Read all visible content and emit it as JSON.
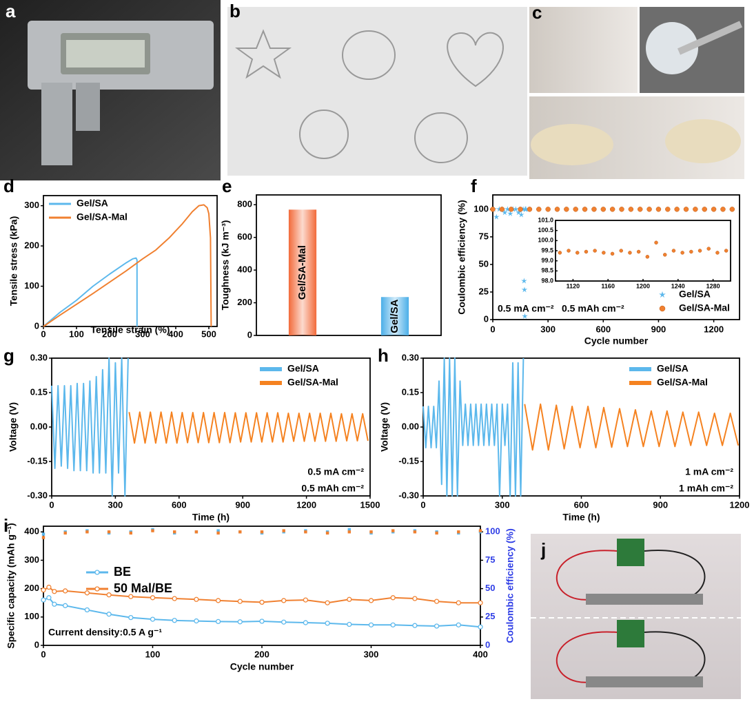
{
  "panel_labels": [
    "a",
    "b",
    "c",
    "d",
    "e",
    "f",
    "g",
    "h",
    "i",
    "j"
  ],
  "chart_data": [
    {
      "type": "line",
      "xlabel": "Tensile strain (%)",
      "ylabel": "Tensile stress (kPa)",
      "xlim": [
        0,
        525
      ],
      "ylim": [
        0,
        325
      ],
      "xticks": [
        0,
        100,
        200,
        300,
        400,
        500
      ],
      "yticks": [
        0,
        100,
        200,
        300
      ],
      "legend": "upper left",
      "series": [
        {
          "name": "Gel/SA",
          "color": "#5cb8ec",
          "x": [
            0,
            50,
            100,
            150,
            200,
            250,
            270,
            280,
            283,
            283
          ],
          "values": [
            0,
            35,
            65,
            100,
            130,
            158,
            168,
            170,
            165,
            0
          ]
        },
        {
          "name": "Gel/SA-Mal",
          "color": "#f08030",
          "x": [
            0,
            50,
            100,
            150,
            200,
            250,
            300,
            340,
            380,
            420,
            450,
            470,
            485,
            495,
            500,
            505,
            507
          ],
          "values": [
            0,
            28,
            55,
            82,
            110,
            138,
            168,
            190,
            220,
            255,
            285,
            300,
            302,
            295,
            280,
            220,
            0
          ]
        }
      ]
    },
    {
      "type": "bar",
      "ylabel": "Toughness (kJ m⁻³)",
      "categories": [
        "Gel/SA-Mal",
        "Gel/SA"
      ],
      "values": [
        770,
        235
      ],
      "colors": [
        "#f26a3a",
        "#4aaee8"
      ],
      "ylim": [
        0,
        860
      ],
      "yticks": [
        0,
        200,
        400,
        600,
        800
      ]
    },
    {
      "type": "scatter",
      "xlabel": "Cycle number",
      "ylabel": "Coulombic efficiency (%)",
      "xlim": [
        0,
        1340
      ],
      "ylim": [
        0,
        113
      ],
      "xticks": [
        0,
        300,
        600,
        900,
        1200
      ],
      "yticks": [
        0,
        25,
        50,
        75,
        100
      ],
      "legend": "lower right",
      "annotations": [
        "0.5 mA cm⁻²",
        "0.5 mAh cm⁻²"
      ],
      "series": [
        {
          "name": "Gel/SA",
          "color": "#5cb8ec",
          "marker": "star",
          "x": [
            5,
            20,
            35,
            50,
            65,
            80,
            95,
            110,
            125,
            140,
            155,
            165,
            170,
            172,
            174,
            176,
            178,
            180
          ],
          "values": [
            100,
            93,
            100,
            100,
            97,
            100,
            96,
            100,
            100,
            97,
            95,
            100,
            35,
            27,
            3,
            100,
            100,
            100
          ]
        },
        {
          "name": "Gel/SA-Mal",
          "color": "#f08030",
          "marker": "circle",
          "x": [
            0,
            50,
            100,
            150,
            200,
            250,
            300,
            350,
            400,
            450,
            500,
            550,
            600,
            650,
            700,
            750,
            800,
            850,
            900,
            950,
            1000,
            1050,
            1100,
            1150,
            1200,
            1250,
            1300
          ],
          "values": [
            100,
            100,
            100,
            100,
            100,
            100,
            100,
            100,
            100,
            100,
            100,
            100,
            100,
            100,
            100,
            100,
            100,
            100,
            100,
            100,
            100,
            100,
            100,
            100,
            100,
            100,
            100
          ]
        }
      ],
      "inset": {
        "type": "scatter",
        "xlim": [
          1100,
          1300
        ],
        "ylim": [
          98,
          101
        ],
        "xticks": [
          1120,
          1160,
          1200,
          1240,
          1280
        ],
        "yticks": [
          {
            "value": 98,
            "label": "98.0"
          },
          {
            "value": 98.5,
            "label": "98.5"
          },
          {
            "value": 99,
            "label": "99.0"
          },
          {
            "value": 99.5,
            "label": "99.5"
          },
          {
            "value": 100,
            "label": "100.0"
          },
          {
            "value": 100.5,
            "label": "100.5"
          },
          {
            "value": 101,
            "label": "101.0"
          }
        ],
        "series": [
          {
            "color": "#f08030",
            "marker": "circle",
            "x": [
              1105,
              1115,
              1125,
              1135,
              1145,
              1155,
              1165,
              1175,
              1185,
              1195,
              1205,
              1215,
              1225,
              1235,
              1245,
              1255,
              1265,
              1275,
              1285,
              1295
            ],
            "values": [
              99.4,
              99.5,
              99.4,
              99.45,
              99.5,
              99.4,
              99.35,
              99.5,
              99.4,
              99.45,
              99.2,
              99.9,
              99.3,
              99.5,
              99.4,
              99.45,
              99.5,
              99.6,
              99.4,
              99.5
            ]
          }
        ]
      }
    },
    {
      "type": "line",
      "xlabel": "Time (h)",
      "ylabel": "Voltage (V)",
      "xlim": [
        0,
        1500
      ],
      "ylim": [
        -0.3,
        0.3
      ],
      "xticks": [
        0,
        300,
        600,
        900,
        1200,
        1500
      ],
      "yticks": [
        {
          "value": -0.3,
          "label": "-0.30"
        },
        {
          "value": -0.15,
          "label": "-0.15"
        },
        {
          "value": 0,
          "label": "0.00"
        },
        {
          "value": 0.15,
          "label": "0.15"
        },
        {
          "value": 0.3,
          "label": "0.30"
        }
      ],
      "legend": "upper right",
      "annotations": [
        "0.5 mA cm⁻²",
        "0.5 mAh cm⁻²"
      ],
      "series": [
        {
          "name": "Gel/SA",
          "color": "#5cb8ec",
          "x": [
            0,
            15,
            30,
            45,
            60,
            75,
            90,
            105,
            120,
            135,
            150,
            165,
            180,
            195,
            210,
            225,
            240,
            255,
            270,
            285,
            300,
            315,
            330,
            345,
            360
          ],
          "values": [
            0.18,
            -0.18,
            0.18,
            -0.17,
            0.18,
            -0.18,
            0.18,
            -0.19,
            0.19,
            -0.19,
            0.19,
            -0.19,
            0.2,
            -0.2,
            0.22,
            -0.2,
            0.25,
            -0.2,
            0.3,
            -0.3,
            0.28,
            -0.2,
            0.3,
            -0.3,
            0.3
          ]
        },
        {
          "name": "Gel/SA-Mal",
          "color": "#f58220",
          "x": [
            365,
            390,
            415,
            440,
            465,
            490,
            515,
            540,
            565,
            590,
            615,
            640,
            665,
            690,
            715,
            740,
            765,
            790,
            815,
            840,
            865,
            890,
            915,
            940,
            965,
            990,
            1015,
            1040,
            1065,
            1090,
            1115,
            1140,
            1165,
            1190,
            1215,
            1240,
            1265,
            1290,
            1315,
            1340,
            1365,
            1390,
            1415,
            1440,
            1465,
            1490
          ],
          "values": [
            0.065,
            -0.07,
            0.065,
            -0.07,
            0.065,
            -0.07,
            0.065,
            -0.07,
            0.065,
            -0.07,
            0.063,
            -0.068,
            0.063,
            -0.068,
            0.063,
            -0.068,
            0.063,
            -0.068,
            0.063,
            -0.068,
            0.062,
            -0.065,
            0.062,
            -0.065,
            0.062,
            -0.065,
            0.062,
            -0.065,
            0.062,
            -0.065,
            0.06,
            -0.062,
            0.06,
            -0.062,
            0.06,
            -0.062,
            0.06,
            -0.062,
            0.06,
            -0.062,
            0.058,
            -0.06,
            0.058,
            -0.06,
            0.058,
            -0.06
          ]
        }
      ]
    },
    {
      "type": "line",
      "xlabel": "Time (h)",
      "ylabel": "Voltage (V)",
      "xlim": [
        0,
        1200
      ],
      "ylim": [
        -0.3,
        0.3
      ],
      "xticks": [
        0,
        300,
        600,
        900,
        1200
      ],
      "yticks": [
        {
          "value": -0.3,
          "label": "-0.30"
        },
        {
          "value": -0.15,
          "label": "-0.15"
        },
        {
          "value": 0,
          "label": "0.00"
        },
        {
          "value": 0.15,
          "label": "0.15"
        },
        {
          "value": 0.3,
          "label": "0.30"
        }
      ],
      "legend": "upper right",
      "annotations": [
        "1 mA cm⁻²",
        "1 mAh cm⁻²"
      ],
      "series": [
        {
          "name": "Gel/SA",
          "color": "#5cb8ec",
          "x": [
            0,
            10,
            20,
            30,
            40,
            50,
            60,
            70,
            80,
            90,
            100,
            110,
            120,
            130,
            140,
            150,
            160,
            170,
            180,
            190,
            200,
            210,
            220,
            230,
            240,
            250,
            260,
            270,
            280,
            290,
            300,
            310,
            320,
            330,
            340,
            350,
            360,
            370,
            380
          ],
          "values": [
            0.09,
            -0.09,
            0.09,
            -0.09,
            0.09,
            -0.09,
            0.2,
            -0.25,
            0.3,
            -0.3,
            0.3,
            -0.3,
            0.3,
            -0.3,
            0.2,
            -0.08,
            0.1,
            -0.08,
            0.1,
            -0.08,
            0.1,
            -0.08,
            0.1,
            -0.08,
            0.1,
            -0.08,
            0.1,
            -0.08,
            0.1,
            -0.3,
            0.1,
            -0.08,
            0.1,
            -0.3,
            0.28,
            -0.3,
            0.28,
            -0.3,
            0.3
          ]
        },
        {
          "name": "Gel/SA-Mal",
          "color": "#f58220",
          "x": [
            385,
            415,
            445,
            475,
            505,
            535,
            565,
            595,
            625,
            655,
            685,
            715,
            745,
            775,
            805,
            835,
            865,
            895,
            925,
            955,
            985,
            1015,
            1045,
            1075,
            1105,
            1135,
            1165,
            1195
          ],
          "values": [
            0.1,
            -0.1,
            0.1,
            -0.1,
            0.095,
            -0.095,
            0.09,
            -0.09,
            0.09,
            -0.09,
            0.085,
            -0.088,
            0.08,
            -0.085,
            0.075,
            -0.085,
            0.07,
            -0.085,
            0.07,
            -0.085,
            0.065,
            -0.08,
            0.065,
            -0.08,
            0.06,
            -0.08,
            0.06,
            -0.08
          ]
        }
      ]
    },
    {
      "type": "line",
      "xlabel": "Cycle number",
      "ylabel": "Specific capacity (mAh g⁻¹)",
      "y2label": "Coulombic efficiency (%)",
      "y2color": "#2f3ee6",
      "xlim": [
        0,
        400
      ],
      "ylim": [
        0,
        420
      ],
      "y2lim": [
        0,
        105
      ],
      "xticks": [
        0,
        100,
        200,
        300,
        400
      ],
      "yticks": [
        0,
        100,
        200,
        300,
        400
      ],
      "y2ticks": [
        0,
        25,
        50,
        75,
        100
      ],
      "legend": "center left",
      "annotations": [
        "Current density:0.5 A g⁻¹"
      ],
      "series": [
        {
          "name": "BE",
          "color": "#5cb8ec",
          "marker": "open-circle",
          "x": [
            0,
            5,
            10,
            20,
            40,
            60,
            80,
            100,
            120,
            140,
            160,
            180,
            200,
            220,
            240,
            260,
            280,
            300,
            320,
            340,
            360,
            380,
            400
          ],
          "values": [
            160,
            168,
            145,
            140,
            125,
            110,
            98,
            92,
            88,
            86,
            84,
            83,
            85,
            82,
            80,
            78,
            74,
            72,
            72,
            70,
            68,
            72,
            65
          ]
        },
        {
          "name": "50 Mal/BE",
          "color": "#f08030",
          "marker": "open-circle",
          "x": [
            0,
            5,
            10,
            20,
            40,
            60,
            80,
            100,
            120,
            140,
            160,
            180,
            200,
            220,
            240,
            260,
            280,
            300,
            320,
            340,
            360,
            380,
            400
          ],
          "values": [
            195,
            205,
            190,
            192,
            185,
            178,
            172,
            168,
            165,
            162,
            158,
            155,
            152,
            158,
            160,
            150,
            162,
            158,
            168,
            165,
            155,
            150,
            150
          ]
        },
        {
          "type": "scatter",
          "axis": "y2",
          "color": "#5cb8ec",
          "marker": "square",
          "x": [
            0,
            20,
            40,
            60,
            80,
            100,
            120,
            140,
            160,
            180,
            200,
            220,
            240,
            260,
            280,
            300,
            320,
            340,
            360,
            380,
            400
          ],
          "values": [
            98,
            100,
            101,
            99,
            100,
            102,
            99,
            100,
            101,
            100,
            99,
            100,
            101,
            100,
            102,
            99,
            100,
            101,
            100,
            99,
            100
          ]
        },
        {
          "type": "scatter",
          "axis": "y2",
          "color": "#f08030",
          "marker": "square",
          "x": [
            0,
            20,
            40,
            60,
            80,
            100,
            120,
            140,
            160,
            180,
            200,
            220,
            240,
            260,
            280,
            300,
            320,
            340,
            360,
            380,
            400
          ],
          "values": [
            95,
            99,
            100,
            100,
            99,
            101,
            100,
            100,
            99,
            100,
            100,
            101,
            100,
            99,
            100,
            100,
            101,
            100,
            99,
            100,
            101
          ]
        }
      ]
    }
  ]
}
